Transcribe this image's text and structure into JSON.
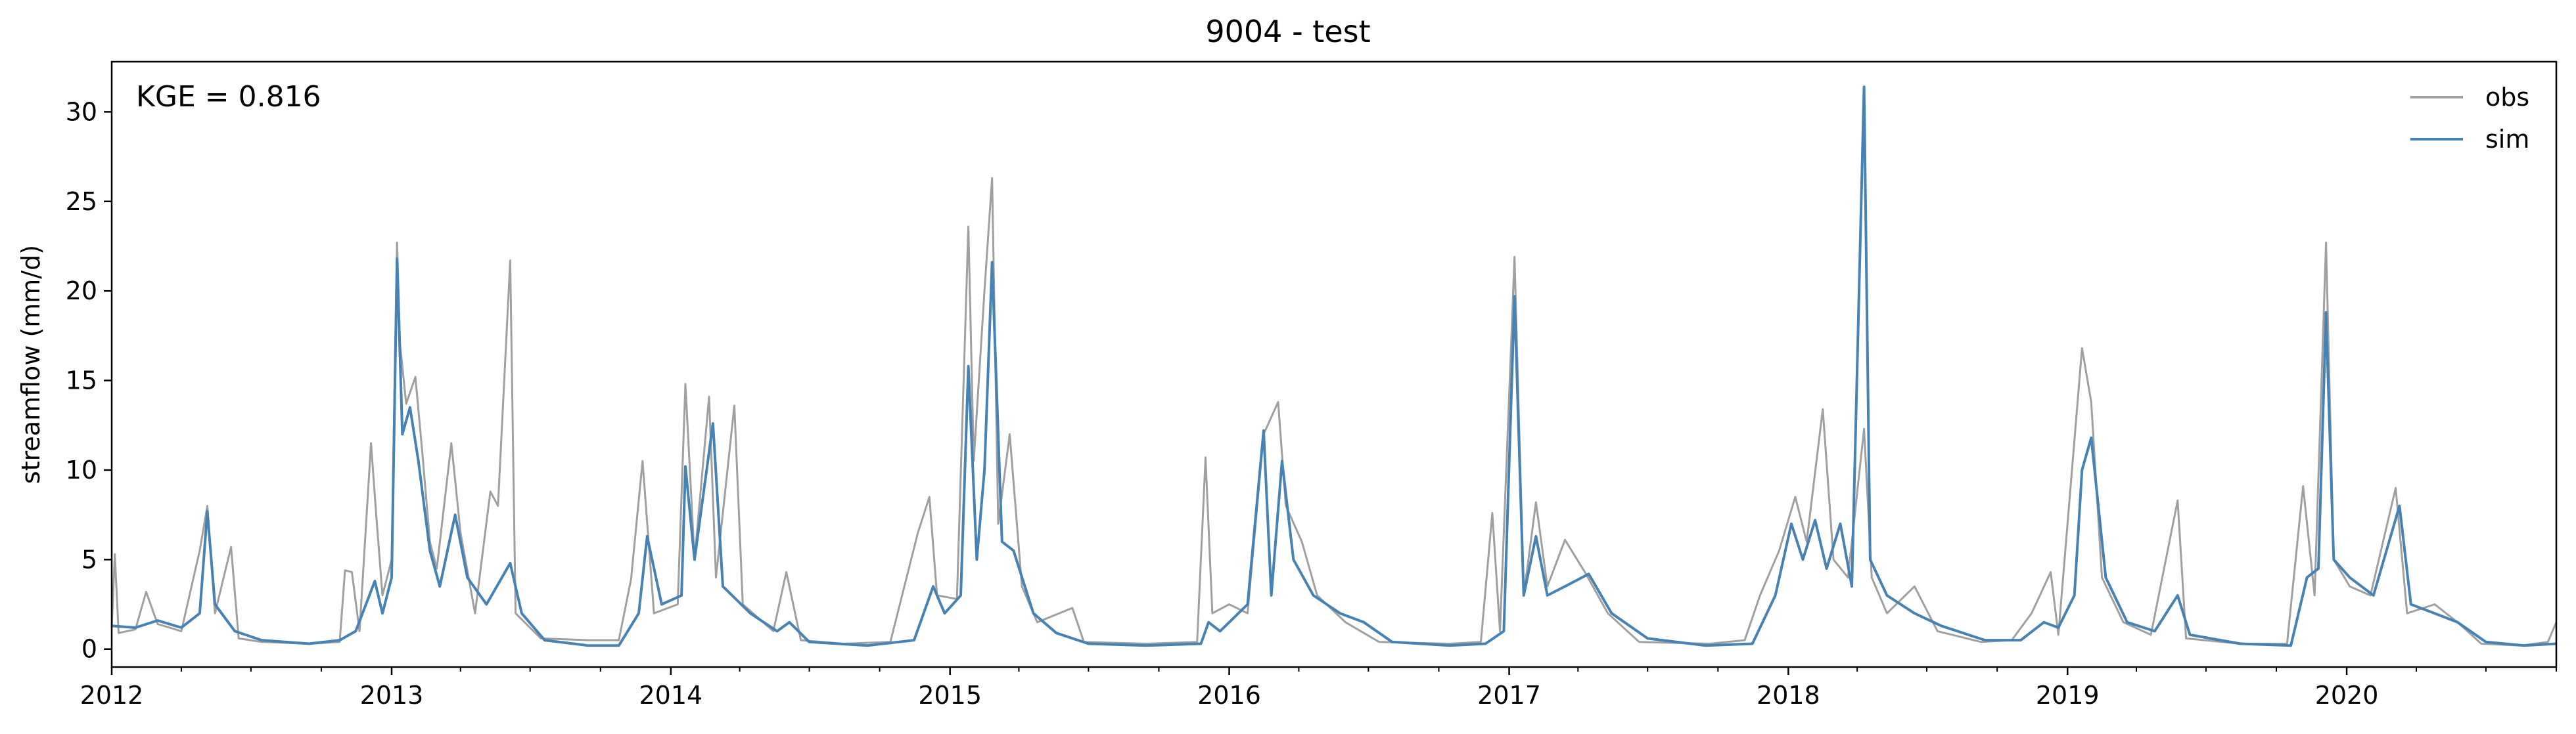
{
  "chart_data": {
    "type": "line",
    "title": "9004 - test",
    "xlabel": "",
    "ylabel": "streamflow (mm/d)",
    "annotation": "KGE = 0.816",
    "xlim": [
      "2012-01-01",
      "2020-10-01"
    ],
    "ylim": [
      -1.0,
      32.8
    ],
    "x_ticks": [
      "2012",
      "2013",
      "2014",
      "2015",
      "2016",
      "2017",
      "2018",
      "2019",
      "2020"
    ],
    "y_ticks": [
      0,
      5,
      10,
      15,
      20,
      25,
      30
    ],
    "grid": false,
    "legend_position": "top-right",
    "series": [
      {
        "name": "obs",
        "color": "#a0a0a0",
        "points": [
          [
            "2012-01-01",
            1.2
          ],
          [
            "2012-01-05",
            5.3
          ],
          [
            "2012-01-10",
            0.9
          ],
          [
            "2012-02-01",
            1.1
          ],
          [
            "2012-02-15",
            3.2
          ],
          [
            "2012-03-01",
            1.4
          ],
          [
            "2012-04-01",
            1.0
          ],
          [
            "2012-04-25",
            5.5
          ],
          [
            "2012-05-05",
            8.0
          ],
          [
            "2012-05-15",
            2.0
          ],
          [
            "2012-06-05",
            5.7
          ],
          [
            "2012-06-15",
            0.6
          ],
          [
            "2012-07-15",
            0.4
          ],
          [
            "2012-09-15",
            0.3
          ],
          [
            "2012-10-25",
            0.4
          ],
          [
            "2012-11-01",
            4.4
          ],
          [
            "2012-11-10",
            4.3
          ],
          [
            "2012-11-20",
            1.0
          ],
          [
            "2012-12-05",
            11.5
          ],
          [
            "2012-12-12",
            7.4
          ],
          [
            "2012-12-20",
            3.0
          ],
          [
            "2013-01-01",
            5.0
          ],
          [
            "2013-01-08",
            22.7
          ],
          [
            "2013-01-12",
            17.0
          ],
          [
            "2013-01-20",
            13.7
          ],
          [
            "2013-02-01",
            15.2
          ],
          [
            "2013-02-10",
            11.0
          ],
          [
            "2013-02-20",
            6.0
          ],
          [
            "2013-03-01",
            4.5
          ],
          [
            "2013-03-20",
            11.5
          ],
          [
            "2013-04-01",
            6.5
          ],
          [
            "2013-04-20",
            2.0
          ],
          [
            "2013-05-10",
            8.8
          ],
          [
            "2013-05-20",
            8.0
          ],
          [
            "2013-06-05",
            21.7
          ],
          [
            "2013-06-12",
            2.0
          ],
          [
            "2013-07-15",
            0.6
          ],
          [
            "2013-09-15",
            0.5
          ],
          [
            "2013-10-25",
            0.5
          ],
          [
            "2013-11-10",
            3.9
          ],
          [
            "2013-11-25",
            10.5
          ],
          [
            "2013-12-10",
            2.0
          ],
          [
            "2014-01-10",
            2.5
          ],
          [
            "2014-01-20",
            14.8
          ],
          [
            "2014-02-01",
            5.0
          ],
          [
            "2014-02-20",
            14.1
          ],
          [
            "2014-03-01",
            4.0
          ],
          [
            "2014-03-25",
            13.6
          ],
          [
            "2014-04-05",
            2.5
          ],
          [
            "2014-05-15",
            1.0
          ],
          [
            "2014-06-01",
            4.3
          ],
          [
            "2014-06-20",
            0.5
          ],
          [
            "2014-08-15",
            0.3
          ],
          [
            "2014-10-15",
            0.4
          ],
          [
            "2014-11-20",
            6.5
          ],
          [
            "2014-12-05",
            8.5
          ],
          [
            "2014-12-15",
            3.0
          ],
          [
            "2015-01-10",
            2.8
          ],
          [
            "2015-01-25",
            23.6
          ],
          [
            "2015-02-01",
            10.5
          ],
          [
            "2015-02-15",
            20.0
          ],
          [
            "2015-02-25",
            26.3
          ],
          [
            "2015-03-05",
            7.0
          ],
          [
            "2015-03-20",
            12.0
          ],
          [
            "2015-04-05",
            3.5
          ],
          [
            "2015-04-25",
            1.5
          ],
          [
            "2015-06-10",
            2.3
          ],
          [
            "2015-06-25",
            0.4
          ],
          [
            "2015-09-15",
            0.3
          ],
          [
            "2015-11-20",
            0.4
          ],
          [
            "2015-12-01",
            10.7
          ],
          [
            "2015-12-10",
            2.0
          ],
          [
            "2016-01-01",
            2.5
          ],
          [
            "2016-01-25",
            2.0
          ],
          [
            "2016-02-15",
            12.0
          ],
          [
            "2016-03-05",
            13.8
          ],
          [
            "2016-03-15",
            8.0
          ],
          [
            "2016-04-05",
            6.0
          ],
          [
            "2016-04-25",
            3.0
          ],
          [
            "2016-06-01",
            1.5
          ],
          [
            "2016-07-15",
            0.4
          ],
          [
            "2016-10-15",
            0.3
          ],
          [
            "2016-11-25",
            0.4
          ],
          [
            "2016-12-10",
            7.6
          ],
          [
            "2016-12-20",
            1.0
          ],
          [
            "2017-01-08",
            21.9
          ],
          [
            "2017-01-20",
            3.0
          ],
          [
            "2017-02-05",
            8.2
          ],
          [
            "2017-02-20",
            3.5
          ],
          [
            "2017-03-15",
            6.1
          ],
          [
            "2017-04-10",
            4.3
          ],
          [
            "2017-05-10",
            2.0
          ],
          [
            "2017-06-20",
            0.4
          ],
          [
            "2017-09-20",
            0.3
          ],
          [
            "2017-11-05",
            0.5
          ],
          [
            "2017-11-25",
            3.0
          ],
          [
            "2017-12-20",
            5.5
          ],
          [
            "2018-01-10",
            8.5
          ],
          [
            "2018-01-25",
            6.0
          ],
          [
            "2018-02-15",
            13.4
          ],
          [
            "2018-03-01",
            5.0
          ],
          [
            "2018-03-20",
            4.0
          ],
          [
            "2018-04-10",
            12.3
          ],
          [
            "2018-04-20",
            4.0
          ],
          [
            "2018-05-10",
            2.0
          ],
          [
            "2018-06-15",
            3.5
          ],
          [
            "2018-07-15",
            1.0
          ],
          [
            "2018-09-10",
            0.4
          ],
          [
            "2018-10-20",
            0.5
          ],
          [
            "2018-11-15",
            2.0
          ],
          [
            "2018-12-10",
            4.3
          ],
          [
            "2018-12-20",
            0.8
          ],
          [
            "2019-01-20",
            16.8
          ],
          [
            "2019-02-01",
            13.8
          ],
          [
            "2019-02-15",
            4.0
          ],
          [
            "2019-03-15",
            1.5
          ],
          [
            "2019-04-20",
            0.8
          ],
          [
            "2019-05-25",
            8.3
          ],
          [
            "2019-06-05",
            0.6
          ],
          [
            "2019-08-15",
            0.3
          ],
          [
            "2019-10-15",
            0.3
          ],
          [
            "2019-11-05",
            9.1
          ],
          [
            "2019-11-20",
            3.0
          ],
          [
            "2019-12-05",
            22.7
          ],
          [
            "2019-12-15",
            5.0
          ],
          [
            "2020-01-05",
            3.5
          ],
          [
            "2020-02-01",
            3.0
          ],
          [
            "2020-03-05",
            9.0
          ],
          [
            "2020-03-20",
            2.0
          ],
          [
            "2020-04-25",
            2.5
          ],
          [
            "2020-05-25",
            1.5
          ],
          [
            "2020-06-25",
            0.3
          ],
          [
            "2020-08-15",
            0.2
          ],
          [
            "2020-09-20",
            0.4
          ],
          [
            "2020-10-01",
            1.5
          ]
        ]
      },
      {
        "name": "sim",
        "color": "#4682b4",
        "points": [
          [
            "2012-01-01",
            1.3
          ],
          [
            "2012-02-01",
            1.2
          ],
          [
            "2012-03-01",
            1.6
          ],
          [
            "2012-04-01",
            1.2
          ],
          [
            "2012-04-25",
            2.0
          ],
          [
            "2012-05-05",
            7.7
          ],
          [
            "2012-05-15",
            2.5
          ],
          [
            "2012-06-10",
            1.0
          ],
          [
            "2012-07-15",
            0.5
          ],
          [
            "2012-09-15",
            0.3
          ],
          [
            "2012-10-25",
            0.5
          ],
          [
            "2012-11-15",
            1.0
          ],
          [
            "2012-12-10",
            3.8
          ],
          [
            "2012-12-20",
            2.0
          ],
          [
            "2013-01-01",
            4.0
          ],
          [
            "2013-01-08",
            21.8
          ],
          [
            "2013-01-15",
            12.0
          ],
          [
            "2013-01-25",
            13.5
          ],
          [
            "2013-02-05",
            10.5
          ],
          [
            "2013-02-20",
            5.5
          ],
          [
            "2013-03-05",
            3.5
          ],
          [
            "2013-03-25",
            7.5
          ],
          [
            "2013-04-10",
            4.0
          ],
          [
            "2013-05-05",
            2.5
          ],
          [
            "2013-06-05",
            4.8
          ],
          [
            "2013-06-20",
            2.0
          ],
          [
            "2013-07-20",
            0.5
          ],
          [
            "2013-09-15",
            0.2
          ],
          [
            "2013-10-25",
            0.2
          ],
          [
            "2013-11-20",
            2.0
          ],
          [
            "2013-12-01",
            6.3
          ],
          [
            "2013-12-20",
            2.5
          ],
          [
            "2014-01-15",
            3.0
          ],
          [
            "2014-01-20",
            10.2
          ],
          [
            "2014-02-01",
            5.0
          ],
          [
            "2014-02-25",
            12.6
          ],
          [
            "2014-03-10",
            3.5
          ],
          [
            "2014-04-15",
            2.0
          ],
          [
            "2014-05-20",
            1.0
          ],
          [
            "2014-06-05",
            1.5
          ],
          [
            "2014-07-01",
            0.4
          ],
          [
            "2014-09-15",
            0.2
          ],
          [
            "2014-11-15",
            0.5
          ],
          [
            "2014-12-10",
            3.5
          ],
          [
            "2014-12-25",
            2.0
          ],
          [
            "2015-01-15",
            3.0
          ],
          [
            "2015-01-25",
            15.8
          ],
          [
            "2015-02-05",
            5.0
          ],
          [
            "2015-02-15",
            10.0
          ],
          [
            "2015-02-25",
            21.6
          ],
          [
            "2015-03-10",
            6.0
          ],
          [
            "2015-03-25",
            5.5
          ],
          [
            "2015-04-20",
            2.0
          ],
          [
            "2015-05-20",
            0.9
          ],
          [
            "2015-07-01",
            0.3
          ],
          [
            "2015-09-15",
            0.2
          ],
          [
            "2015-11-25",
            0.3
          ],
          [
            "2015-12-05",
            1.5
          ],
          [
            "2015-12-20",
            1.0
          ],
          [
            "2016-01-25",
            2.5
          ],
          [
            "2016-02-15",
            12.2
          ],
          [
            "2016-02-25",
            3.0
          ],
          [
            "2016-03-10",
            10.5
          ],
          [
            "2016-03-25",
            5.0
          ],
          [
            "2016-04-20",
            3.0
          ],
          [
            "2016-05-25",
            2.0
          ],
          [
            "2016-06-25",
            1.5
          ],
          [
            "2016-08-01",
            0.4
          ],
          [
            "2016-10-15",
            0.2
          ],
          [
            "2016-12-01",
            0.3
          ],
          [
            "2016-12-25",
            1.0
          ],
          [
            "2017-01-08",
            19.7
          ],
          [
            "2017-01-20",
            3.0
          ],
          [
            "2017-02-05",
            6.3
          ],
          [
            "2017-02-20",
            3.0
          ],
          [
            "2017-03-15",
            3.5
          ],
          [
            "2017-04-15",
            4.2
          ],
          [
            "2017-05-15",
            2.0
          ],
          [
            "2017-07-01",
            0.6
          ],
          [
            "2017-09-15",
            0.2
          ],
          [
            "2017-11-15",
            0.3
          ],
          [
            "2017-12-15",
            3.0
          ],
          [
            "2018-01-05",
            7.0
          ],
          [
            "2018-01-20",
            5.0
          ],
          [
            "2018-02-05",
            7.2
          ],
          [
            "2018-02-20",
            4.5
          ],
          [
            "2018-03-10",
            7.0
          ],
          [
            "2018-03-25",
            3.5
          ],
          [
            "2018-04-10",
            31.4
          ],
          [
            "2018-04-18",
            5.0
          ],
          [
            "2018-05-10",
            3.0
          ],
          [
            "2018-06-15",
            2.0
          ],
          [
            "2018-07-20",
            1.3
          ],
          [
            "2018-09-15",
            0.5
          ],
          [
            "2018-11-01",
            0.5
          ],
          [
            "2018-12-01",
            1.5
          ],
          [
            "2018-12-20",
            1.2
          ],
          [
            "2019-01-10",
            3.0
          ],
          [
            "2019-01-20",
            10.0
          ],
          [
            "2019-02-01",
            11.8
          ],
          [
            "2019-02-20",
            4.0
          ],
          [
            "2019-03-20",
            1.5
          ],
          [
            "2019-04-25",
            1.0
          ],
          [
            "2019-05-25",
            3.0
          ],
          [
            "2019-06-10",
            0.8
          ],
          [
            "2019-08-15",
            0.3
          ],
          [
            "2019-10-20",
            0.2
          ],
          [
            "2019-11-10",
            4.0
          ],
          [
            "2019-11-25",
            4.5
          ],
          [
            "2019-12-05",
            18.8
          ],
          [
            "2019-12-15",
            5.0
          ],
          [
            "2020-01-05",
            4.0
          ],
          [
            "2020-02-05",
            3.0
          ],
          [
            "2020-03-10",
            8.0
          ],
          [
            "2020-03-25",
            2.5
          ],
          [
            "2020-04-25",
            2.0
          ],
          [
            "2020-05-25",
            1.5
          ],
          [
            "2020-07-01",
            0.4
          ],
          [
            "2020-08-20",
            0.2
          ],
          [
            "2020-10-01",
            0.3
          ]
        ]
      }
    ]
  }
}
